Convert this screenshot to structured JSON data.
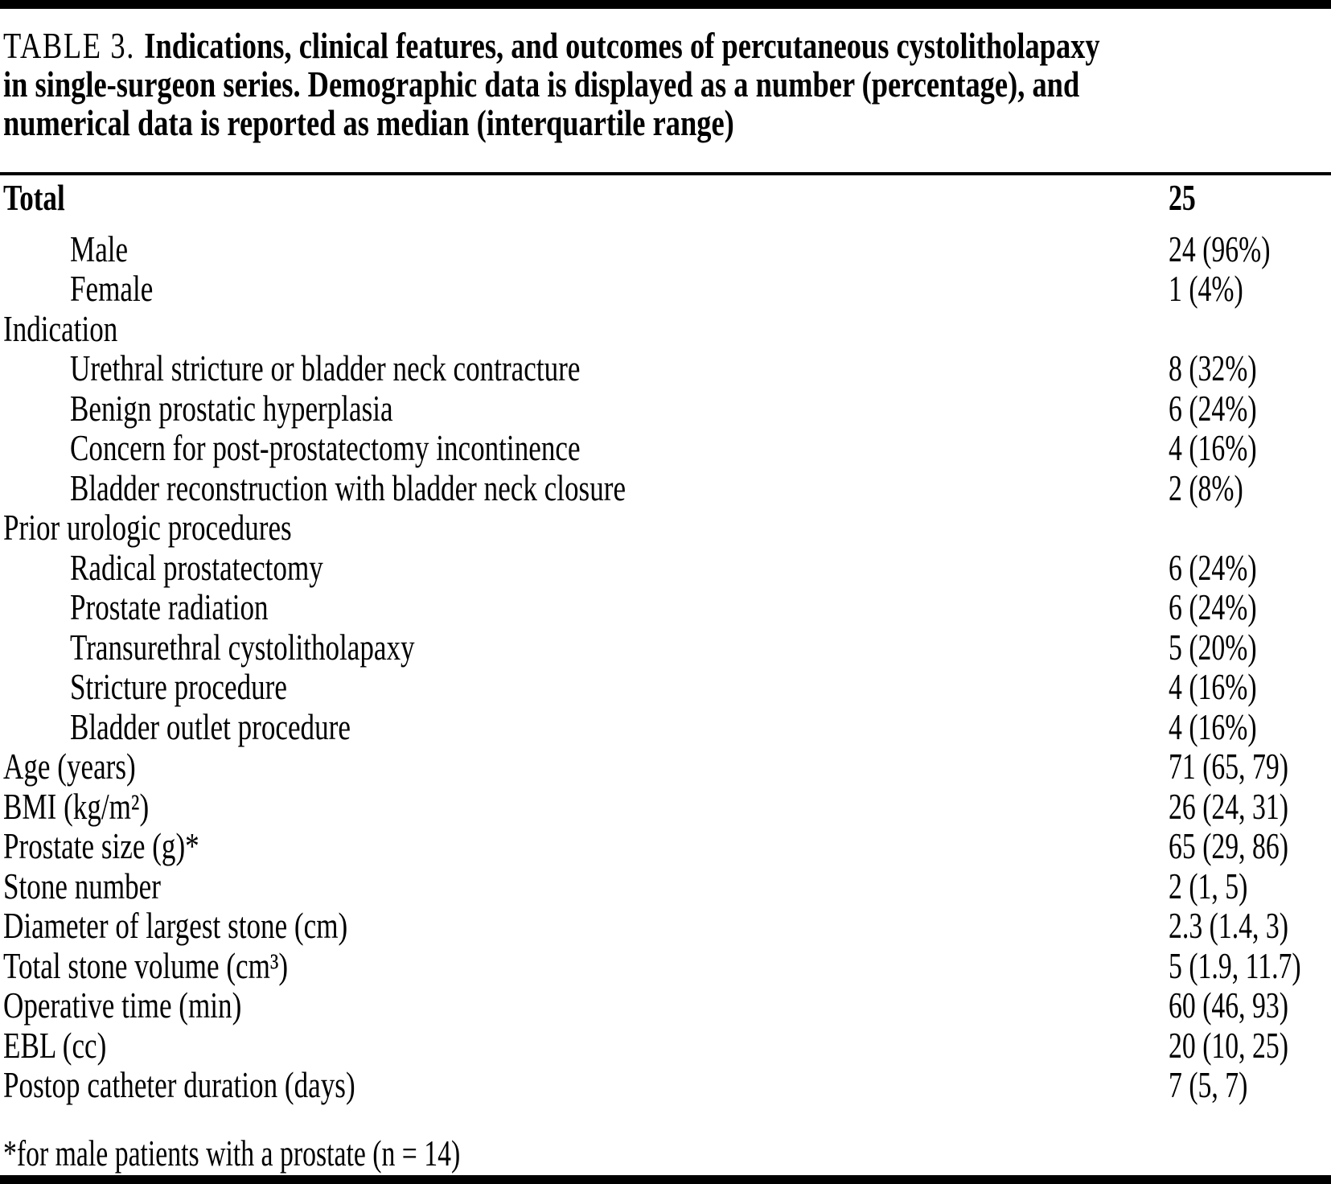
{
  "page": {
    "background": "#ffffff",
    "text_color": "#000000",
    "rule_color": "#000000"
  },
  "header": {
    "table_label": "TABLE 3.",
    "title_lines": [
      "Indications, clinical features, and outcomes of percutaneous cystolitholapaxy",
      "in single-surgeon series. Demographic data is displayed as a number (percentage), and",
      "numerical data is reported as median (interquartile range)"
    ]
  },
  "table": {
    "rows": [
      {
        "label": "Total",
        "value": "25",
        "indent": 0,
        "bold": true
      },
      {
        "label": "Male",
        "value": "24 (96%)",
        "indent": 1,
        "bold": false
      },
      {
        "label": "Female",
        "value": "1 (4%)",
        "indent": 1,
        "bold": false
      },
      {
        "label": "Indication",
        "value": "",
        "indent": 0,
        "bold": false
      },
      {
        "label": "Urethral stricture or bladder neck contracture",
        "value": "8 (32%)",
        "indent": 1,
        "bold": false
      },
      {
        "label": "Benign prostatic hyperplasia",
        "value": "6 (24%)",
        "indent": 1,
        "bold": false
      },
      {
        "label": "Concern for post-prostatectomy incontinence",
        "value": "4 (16%)",
        "indent": 1,
        "bold": false
      },
      {
        "label": "Bladder reconstruction with bladder neck closure",
        "value": "2 (8%)",
        "indent": 1,
        "bold": false
      },
      {
        "label": "Prior urologic procedures",
        "value": "",
        "indent": 0,
        "bold": false
      },
      {
        "label": "Radical prostatectomy",
        "value": "6 (24%)",
        "indent": 1,
        "bold": false
      },
      {
        "label": "Prostate radiation",
        "value": "6 (24%)",
        "indent": 1,
        "bold": false
      },
      {
        "label": "Transurethral cystolitholapaxy",
        "value": "5 (20%)",
        "indent": 1,
        "bold": false
      },
      {
        "label": "Stricture procedure",
        "value": "4 (16%)",
        "indent": 1,
        "bold": false
      },
      {
        "label": "Bladder outlet procedure",
        "value": "4 (16%)",
        "indent": 1,
        "bold": false
      },
      {
        "label": "Age (years)",
        "value": "71 (65, 79)",
        "indent": 0,
        "bold": false
      },
      {
        "label": "BMI (kg/m²)",
        "value": "26 (24, 31)",
        "indent": 0,
        "bold": false
      },
      {
        "label": "Prostate size (g)*",
        "value": "65 (29, 86)",
        "indent": 0,
        "bold": false
      },
      {
        "label": "Stone number",
        "value": "2 (1, 5)",
        "indent": 0,
        "bold": false
      },
      {
        "label": "Diameter of largest stone (cm)",
        "value": "2.3 (1.4, 3)",
        "indent": 0,
        "bold": false
      },
      {
        "label": "Total stone volume (cm³)",
        "value": "5 (1.9, 11.7)",
        "indent": 0,
        "bold": false
      },
      {
        "label": "Operative time (min)",
        "value": "60 (46, 93)",
        "indent": 0,
        "bold": false
      },
      {
        "label": "EBL (cc)",
        "value": "20 (10, 25)",
        "indent": 0,
        "bold": false
      },
      {
        "label": "Postop catheter duration (days)",
        "value": "7 (5, 7)",
        "indent": 0,
        "bold": false
      }
    ]
  },
  "footnote": "*for male patients with a prostate (n = 14)"
}
